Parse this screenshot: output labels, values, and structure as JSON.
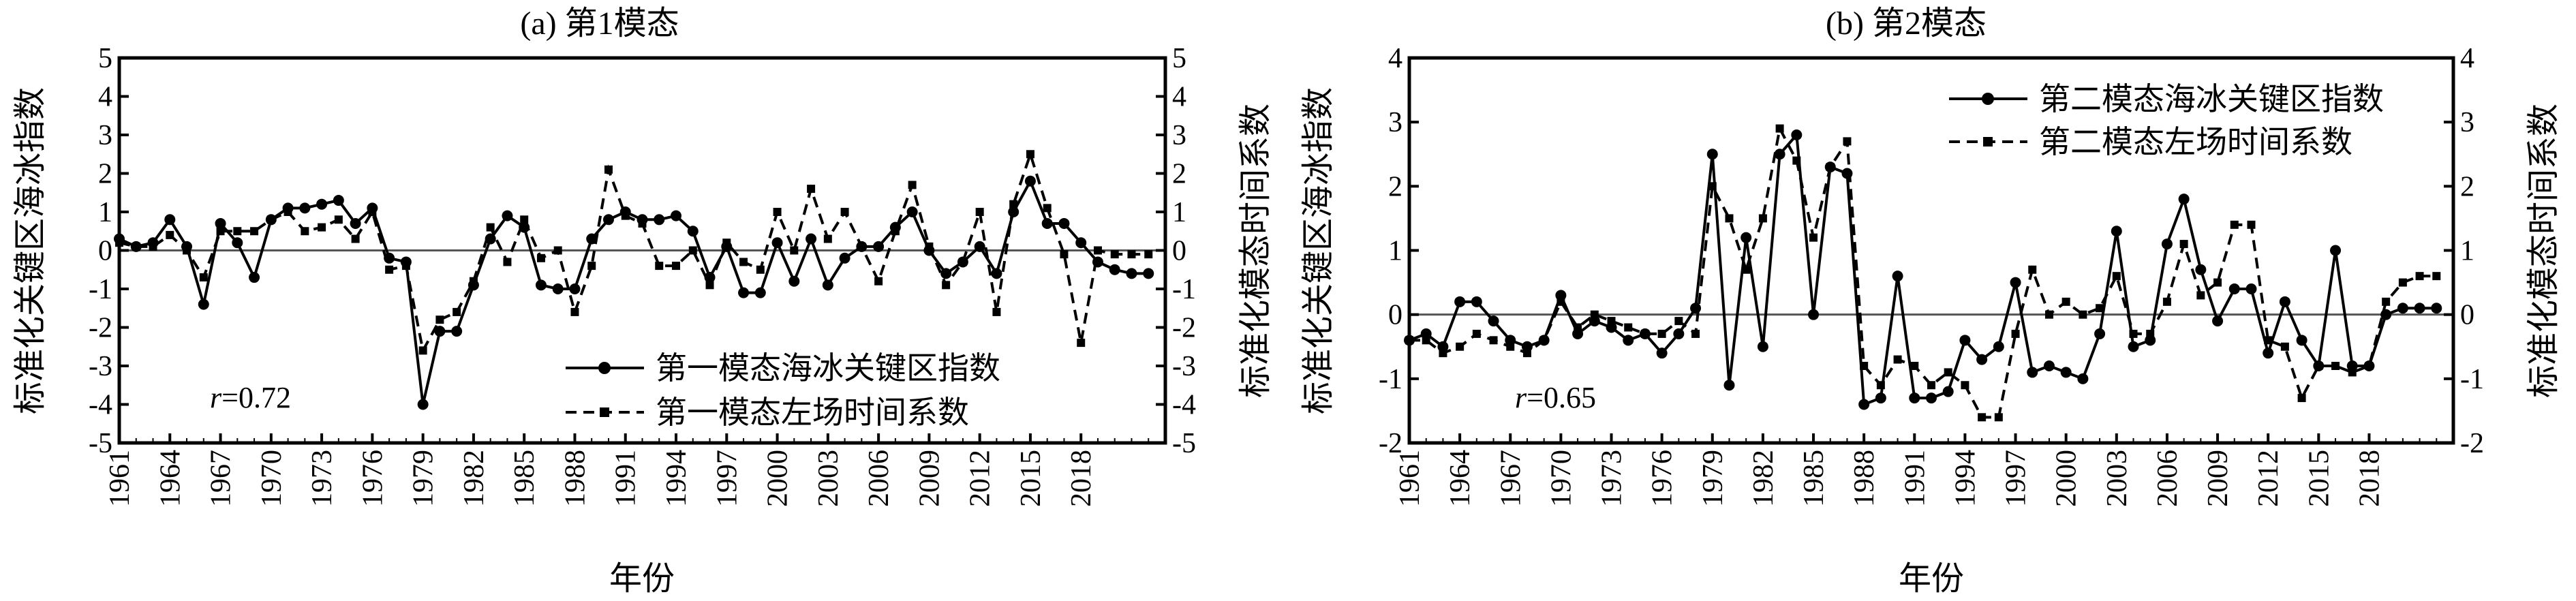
{
  "figure": {
    "xlabel": "年份"
  },
  "chart_data": [
    {
      "type": "line",
      "title": "(a) 第1模态",
      "xlabel": "年份",
      "ylabel": "标准化关键区海冰指数",
      "ylabel_right": "标准化模态时间系数",
      "xlim": [
        1961,
        2023
      ],
      "ylim": [
        -5,
        5
      ],
      "ylim_right": [
        -5,
        5
      ],
      "xticks": [
        "1961",
        "1964",
        "1967",
        "1970",
        "1973",
        "1976",
        "1979",
        "1982",
        "1985",
        "1988",
        "1991",
        "1994",
        "1997",
        "2000",
        "2003",
        "2006",
        "2009",
        "2012",
        "2015",
        "2018"
      ],
      "yticks": [
        "-5",
        "-4",
        "-3",
        "-2",
        "-1",
        "0",
        "1",
        "2",
        "3",
        "4",
        "5"
      ],
      "yticks_right": [
        "-5",
        "-4",
        "-3",
        "-2",
        "-1",
        "0",
        "1",
        "2",
        "3",
        "4",
        "5"
      ],
      "x": [
        1961,
        1962,
        1963,
        1964,
        1965,
        1966,
        1967,
        1968,
        1969,
        1970,
        1971,
        1972,
        1973,
        1974,
        1975,
        1976,
        1977,
        1978,
        1979,
        1980,
        1981,
        1982,
        1983,
        1984,
        1985,
        1986,
        1987,
        1988,
        1989,
        1990,
        1991,
        1992,
        1993,
        1994,
        1995,
        1996,
        1997,
        1998,
        1999,
        2000,
        2001,
        2002,
        2003,
        2004,
        2005,
        2006,
        2007,
        2008,
        2009,
        2010,
        2011,
        2012,
        2013,
        2014,
        2015,
        2016,
        2017,
        2018,
        2019,
        2020,
        2021,
        2022
      ],
      "series": [
        {
          "name": "第一模态海冰关键区指数",
          "style": "solid-circle",
          "axis": "left",
          "values": [
            0.3,
            0.1,
            0.2,
            0.8,
            0.1,
            -1.4,
            0.7,
            0.2,
            -0.7,
            0.8,
            1.1,
            1.1,
            1.2,
            1.3,
            0.7,
            1.1,
            -0.2,
            -0.3,
            -4.0,
            -2.1,
            -2.1,
            -0.9,
            0.3,
            0.9,
            0.6,
            -0.9,
            -1.0,
            -1.0,
            0.3,
            0.8,
            1.0,
            0.8,
            0.8,
            0.9,
            0.5,
            -0.7,
            0.1,
            -1.1,
            -1.1,
            0.2,
            -0.8,
            0.3,
            -0.9,
            -0.2,
            0.1,
            0.1,
            0.6,
            1.0,
            0.0,
            -0.6,
            -0.3,
            0.1,
            -0.6,
            1.0,
            1.8,
            0.7,
            0.7,
            0.2,
            -0.3,
            -0.5,
            -0.6,
            -0.6
          ]
        },
        {
          "name": "第一模态左场时间系数",
          "style": "dashed-square",
          "axis": "right",
          "values": [
            0.2,
            0.1,
            0.1,
            0.4,
            0.0,
            -0.7,
            0.5,
            0.5,
            0.5,
            0.8,
            1.0,
            0.5,
            0.6,
            0.8,
            0.3,
            1.0,
            -0.5,
            -0.4,
            -2.6,
            -1.8,
            -1.6,
            -0.8,
            0.6,
            -0.3,
            0.8,
            -0.2,
            0.0,
            -1.6,
            -0.4,
            2.1,
            0.9,
            0.7,
            -0.4,
            -0.4,
            0.0,
            -0.9,
            0.2,
            -0.3,
            -0.5,
            1.0,
            0.0,
            1.6,
            0.3,
            1.0,
            0.1,
            -0.8,
            0.5,
            1.7,
            0.1,
            -0.9,
            -0.3,
            1.0,
            -1.6,
            1.2,
            2.5,
            1.1,
            -0.1,
            -2.4,
            0.0,
            -0.1,
            -0.1,
            -0.1
          ]
        }
      ],
      "annotation": {
        "label": "r",
        "value": "=0.72"
      },
      "legend": "center-right",
      "zero_line": true
    },
    {
      "type": "line",
      "title": "(b) 第2模态",
      "xlabel": "年份",
      "ylabel": "标准化关键区海冰指数",
      "ylabel_right": "标准化模态时间系数",
      "xlim": [
        1961,
        2023
      ],
      "ylim": [
        -2,
        4
      ],
      "ylim_right": [
        -2,
        4
      ],
      "xticks": [
        "1961",
        "1964",
        "1967",
        "1970",
        "1973",
        "1976",
        "1979",
        "1982",
        "1985",
        "1988",
        "1991",
        "1994",
        "1997",
        "2000",
        "2003",
        "2006",
        "2009",
        "2012",
        "2015",
        "2018"
      ],
      "yticks": [
        "-2",
        "-1",
        "0",
        "1",
        "2",
        "3",
        "4"
      ],
      "yticks_right": [
        "-2",
        "-1",
        "0",
        "1",
        "2",
        "3",
        "4"
      ],
      "x": [
        1961,
        1962,
        1963,
        1964,
        1965,
        1966,
        1967,
        1968,
        1969,
        1970,
        1971,
        1972,
        1973,
        1974,
        1975,
        1976,
        1977,
        1978,
        1979,
        1980,
        1981,
        1982,
        1983,
        1984,
        1985,
        1986,
        1987,
        1988,
        1989,
        1990,
        1991,
        1992,
        1993,
        1994,
        1995,
        1996,
        1997,
        1998,
        1999,
        2000,
        2001,
        2002,
        2003,
        2004,
        2005,
        2006,
        2007,
        2008,
        2009,
        2010,
        2011,
        2012,
        2013,
        2014,
        2015,
        2016,
        2017,
        2018,
        2019,
        2020,
        2021,
        2022
      ],
      "series": [
        {
          "name": "第二模态海冰关键区指数",
          "style": "solid-circle",
          "axis": "left",
          "values": [
            -0.4,
            -0.3,
            -0.5,
            0.2,
            0.2,
            -0.1,
            -0.4,
            -0.5,
            -0.4,
            0.3,
            -0.3,
            -0.1,
            -0.2,
            -0.4,
            -0.3,
            -0.6,
            -0.3,
            0.1,
            2.5,
            -1.1,
            1.2,
            -0.5,
            2.5,
            2.8,
            0.0,
            2.3,
            2.2,
            -1.4,
            -1.3,
            0.6,
            -1.3,
            -1.3,
            -1.2,
            -0.4,
            -0.7,
            -0.5,
            0.5,
            -0.9,
            -0.8,
            -0.9,
            -1.0,
            -0.3,
            1.3,
            -0.5,
            -0.4,
            1.1,
            1.8,
            0.7,
            -0.1,
            0.4,
            0.4,
            -0.6,
            0.2,
            -0.4,
            -0.8,
            1.0,
            -0.8,
            -0.8,
            0.0,
            0.1,
            0.1,
            0.1
          ]
        },
        {
          "name": "第二模态左场时间系数",
          "style": "dashed-square",
          "axis": "right",
          "values": [
            -0.4,
            -0.4,
            -0.6,
            -0.5,
            -0.3,
            -0.4,
            -0.5,
            -0.6,
            -0.4,
            0.2,
            -0.2,
            0.0,
            -0.1,
            -0.2,
            -0.3,
            -0.3,
            -0.1,
            -0.3,
            2.0,
            1.5,
            0.7,
            1.5,
            2.9,
            2.4,
            1.2,
            2.3,
            2.7,
            -0.8,
            -1.1,
            -0.7,
            -0.8,
            -1.1,
            -0.9,
            -1.1,
            -1.6,
            -1.6,
            -0.3,
            0.7,
            0.0,
            0.2,
            0.0,
            0.1,
            0.6,
            -0.3,
            -0.3,
            0.2,
            1.1,
            0.3,
            0.5,
            1.4,
            1.4,
            -0.4,
            -0.5,
            -1.3,
            -0.8,
            -0.8,
            -0.9,
            -0.8,
            0.2,
            0.5,
            0.6,
            0.6
          ]
        }
      ],
      "annotation": {
        "label": "r",
        "value": "=0.65"
      },
      "legend": "top-center",
      "zero_line": true
    }
  ]
}
